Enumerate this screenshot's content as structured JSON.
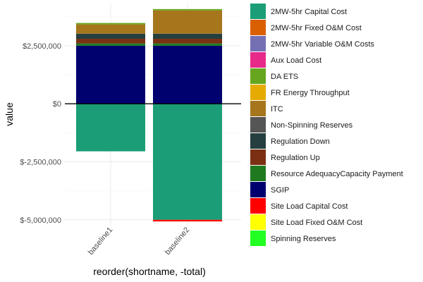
{
  "chart_data": {
    "type": "bar",
    "stacked": true,
    "xlabel": "reorder(shortname, -total)",
    "ylabel": "value",
    "categories": [
      "baseline1",
      "baseline2"
    ],
    "ylim": [
      -5250000,
      4350000
    ],
    "yticks": [
      2500000,
      0,
      -2500000,
      -5000000
    ],
    "ytick_labels": [
      "$2,500,000",
      "$0",
      "$-2,500,000",
      "$-5,000,000"
    ],
    "grid": true,
    "zero_line": true,
    "legend_position": "right",
    "series": [
      {
        "name": "2MW-5hr Capital Cost",
        "color": "#1b9e77",
        "values": [
          -2050000,
          -5000000
        ]
      },
      {
        "name": "2MW-5hr Fixed O&M Cost",
        "color": "#d95f02",
        "values": [
          0,
          0
        ]
      },
      {
        "name": "2MW-5hr Variable O&M Costs",
        "color": "#7570b3",
        "values": [
          0,
          0
        ]
      },
      {
        "name": "Aux Load Cost",
        "color": "#e7298a",
        "values": [
          0,
          0
        ]
      },
      {
        "name": "DA ETS",
        "color": "#66a61e",
        "values": [
          0,
          0
        ]
      },
      {
        "name": "FR Energy Throughput",
        "color": "#e6ab02",
        "values": [
          0,
          0
        ]
      },
      {
        "name": "ITC",
        "color": "#a6761d",
        "values": [
          400000,
          1000000
        ]
      },
      {
        "name": "Non-Spinning Reserves",
        "color": "#555555",
        "values": [
          0,
          0
        ]
      },
      {
        "name": "Regulation Down",
        "color": "#253f3f",
        "values": [
          220000,
          220000
        ]
      },
      {
        "name": "Regulation Up",
        "color": "#7b3014",
        "values": [
          200000,
          200000
        ]
      },
      {
        "name": "Resource AdequacyCapacity Payment",
        "color": "#1f7a1f",
        "values": [
          100000,
          100000
        ]
      },
      {
        "name": "SGIP",
        "color": "#00006e",
        "values": [
          2500000,
          2500000
        ]
      },
      {
        "name": "Site Load Capital Cost",
        "color": "#ff0000",
        "values": [
          0,
          -70000
        ]
      },
      {
        "name": "Site Load Fixed O&M Cost",
        "color": "#ffff00",
        "values": [
          0,
          0
        ]
      },
      {
        "name": "Spinning Reserves",
        "color": "#22ff22",
        "values": [
          0,
          0
        ]
      }
    ],
    "stack_order": [
      "SGIP",
      "Resource AdequacyCapacity Payment",
      "Regulation Up",
      "Regulation Down",
      "ITC",
      "DA ETS"
    ]
  }
}
